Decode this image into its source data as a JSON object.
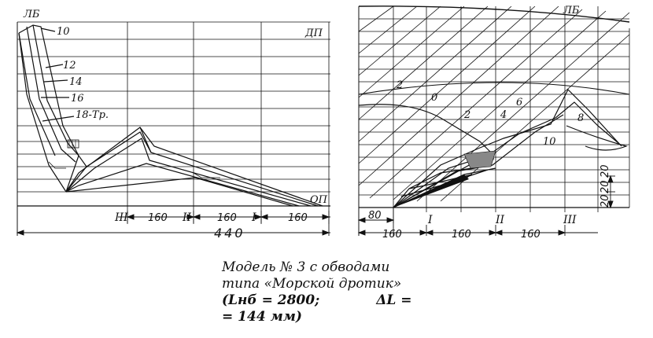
{
  "left_view": {
    "waterline_labels": [
      "10",
      "12",
      "14",
      "16",
      "18-Тр."
    ],
    "lb_label": "ЛБ",
    "dp_label": "ДП",
    "op_label": "ОП",
    "station_labels": [
      "III",
      "II",
      "I"
    ],
    "spacing_labels": [
      "160",
      "160",
      "160"
    ],
    "total_label": "440"
  },
  "right_view": {
    "lb_label": "ЛБ",
    "section_labels": [
      "2",
      "0",
      "2",
      "4",
      "6",
      "8",
      "10"
    ],
    "station_labels": [
      "I",
      "II",
      "III"
    ],
    "offset_label": "80",
    "spacing_labels": [
      "160",
      "160",
      "160"
    ],
    "height_labels": [
      "20",
      "20",
      "20"
    ]
  },
  "caption": {
    "line1": "Модель № 3 с обводами",
    "line2": "типа «Морской дротик»",
    "line3": "(Lнб = 2800;",
    "line3b": "ΔL =",
    "line4": "= 144 мм)"
  }
}
